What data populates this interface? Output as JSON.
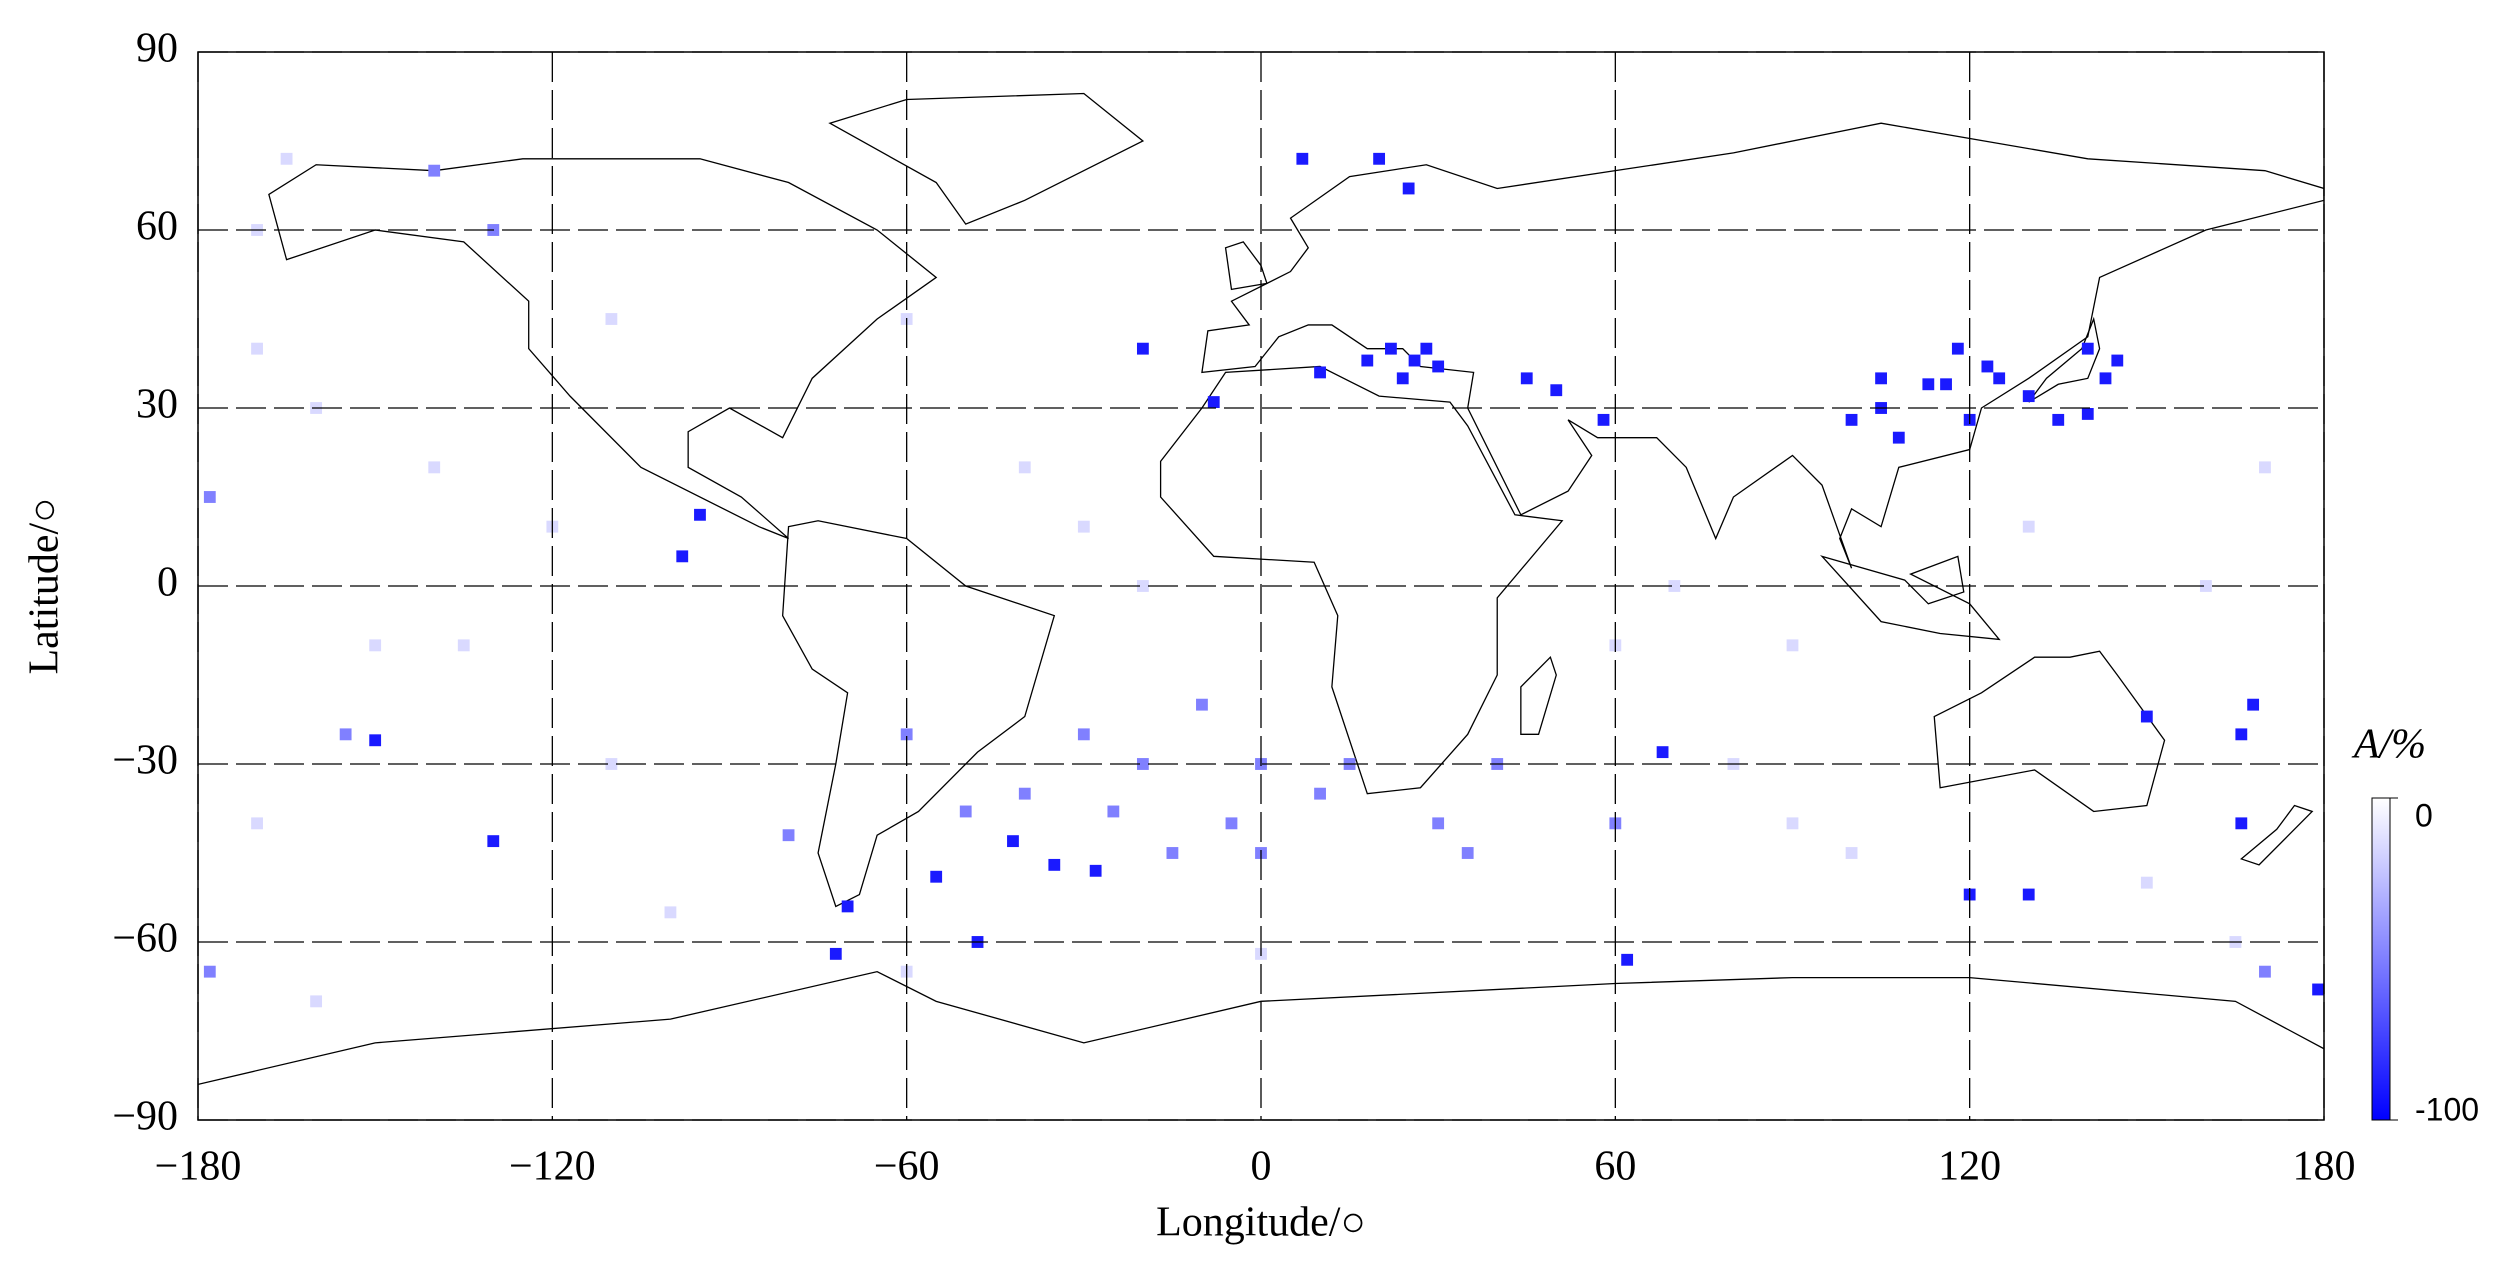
{
  "chart_data": {
    "type": "map",
    "xlabel": "Longitude/○",
    "ylabel": "Latitude/○",
    "xlim": [
      -180,
      180
    ],
    "ylim": [
      -90,
      90
    ],
    "xticks": [
      {
        "value": -180,
        "label": "−180"
      },
      {
        "value": -120,
        "label": "−120"
      },
      {
        "value": -60,
        "label": "−60"
      },
      0,
      60,
      120,
      180
    ],
    "yticks": [
      {
        "value": -90,
        "label": "−90"
      },
      {
        "value": -60,
        "label": "−60"
      },
      {
        "value": -30,
        "label": "−30"
      },
      0,
      30,
      60,
      90
    ],
    "grid": true,
    "colorbar": {
      "label": "A/%",
      "lim": [
        -100,
        0
      ],
      "ticks": [
        0,
        -100
      ],
      "color_min": "#0000ff",
      "color_max": "#ffffff"
    },
    "x": [
      22,
      18,
      26,
      30,
      24,
      10,
      28,
      45,
      50,
      -8,
      7,
      20,
      25,
      105,
      105,
      113,
      116,
      120,
      100,
      108,
      118,
      123,
      125,
      130,
      135,
      140,
      143,
      145,
      140,
      -150,
      -130,
      -70,
      -72,
      -35,
      -28,
      -42,
      -55,
      -48,
      62,
      68,
      150,
      166,
      168,
      166,
      120,
      130,
      -98,
      -95,
      -20,
      58,
      179,
      -10,
      -20,
      -30,
      0,
      10,
      -5,
      15,
      30,
      35,
      -40,
      -25,
      -15,
      -50,
      -60,
      -178,
      -155,
      40,
      0,
      -80,
      170,
      -178,
      -140,
      -130,
      60,
      -170,
      -160,
      -140,
      -120,
      -150,
      -170,
      -110,
      -100,
      -160,
      90,
      80,
      100,
      130,
      160,
      170,
      150,
      -30,
      -40,
      -20,
      60,
      70,
      90,
      -60,
      -165,
      -170,
      165,
      -135,
      -110,
      -60,
      0
    ],
    "y": [
      40,
      38,
      38,
      37,
      35,
      36,
      40,
      35,
      33,
      31,
      72,
      72,
      67,
      35,
      30,
      34,
      34,
      28,
      28,
      25,
      40,
      37,
      35,
      32,
      28,
      29,
      35,
      38,
      40,
      -26,
      -43,
      -54,
      -62,
      -47,
      -48,
      -43,
      -49,
      -60,
      -63,
      -28,
      -22,
      -25,
      -20,
      -40,
      -52,
      -52,
      5,
      12,
      40,
      28,
      -68,
      -20,
      -30,
      -25,
      -30,
      -35,
      -40,
      -30,
      -40,
      -45,
      -35,
      -38,
      -45,
      -38,
      -25,
      15,
      -25,
      -30,
      -45,
      -42,
      -65,
      -65,
      70,
      60,
      -40,
      40,
      30,
      20,
      10,
      -10,
      -40,
      -30,
      -55,
      -70,
      -10,
      -30,
      -45,
      10,
      0,
      20,
      -50,
      10,
      20,
      0,
      -10,
      0,
      -40,
      -65,
      72,
      60,
      -60,
      -10,
      45,
      45,
      -62
    ],
    "values": [
      -90,
      -90,
      -90,
      -90,
      -90,
      -90,
      -90,
      -90,
      -90,
      -90,
      -90,
      -90,
      -90,
      -90,
      -90,
      -90,
      -90,
      -90,
      -90,
      -90,
      -90,
      -90,
      -90,
      -90,
      -90,
      -90,
      -90,
      -90,
      -90,
      -90,
      -90,
      -90,
      -90,
      -90,
      -90,
      -90,
      -90,
      -90,
      -90,
      -90,
      -90,
      -90,
      -90,
      -90,
      -90,
      -90,
      -90,
      -90,
      -90,
      -90,
      -90,
      -50,
      -50,
      -50,
      -50,
      -50,
      -50,
      -50,
      -50,
      -50,
      -50,
      -50,
      -50,
      -50,
      -50,
      -50,
      -50,
      -50,
      -50,
      -50,
      -50,
      -50,
      -50,
      -50,
      -50,
      -15,
      -15,
      -15,
      -15,
      -15,
      -15,
      -15,
      -15,
      -15,
      -15,
      -15,
      -15,
      -15,
      -15,
      -15,
      -15,
      -15,
      -15,
      -15,
      -15,
      -15,
      -15,
      -15,
      -15,
      -15,
      -15,
      -15,
      -15,
      -15,
      -15
    ]
  }
}
